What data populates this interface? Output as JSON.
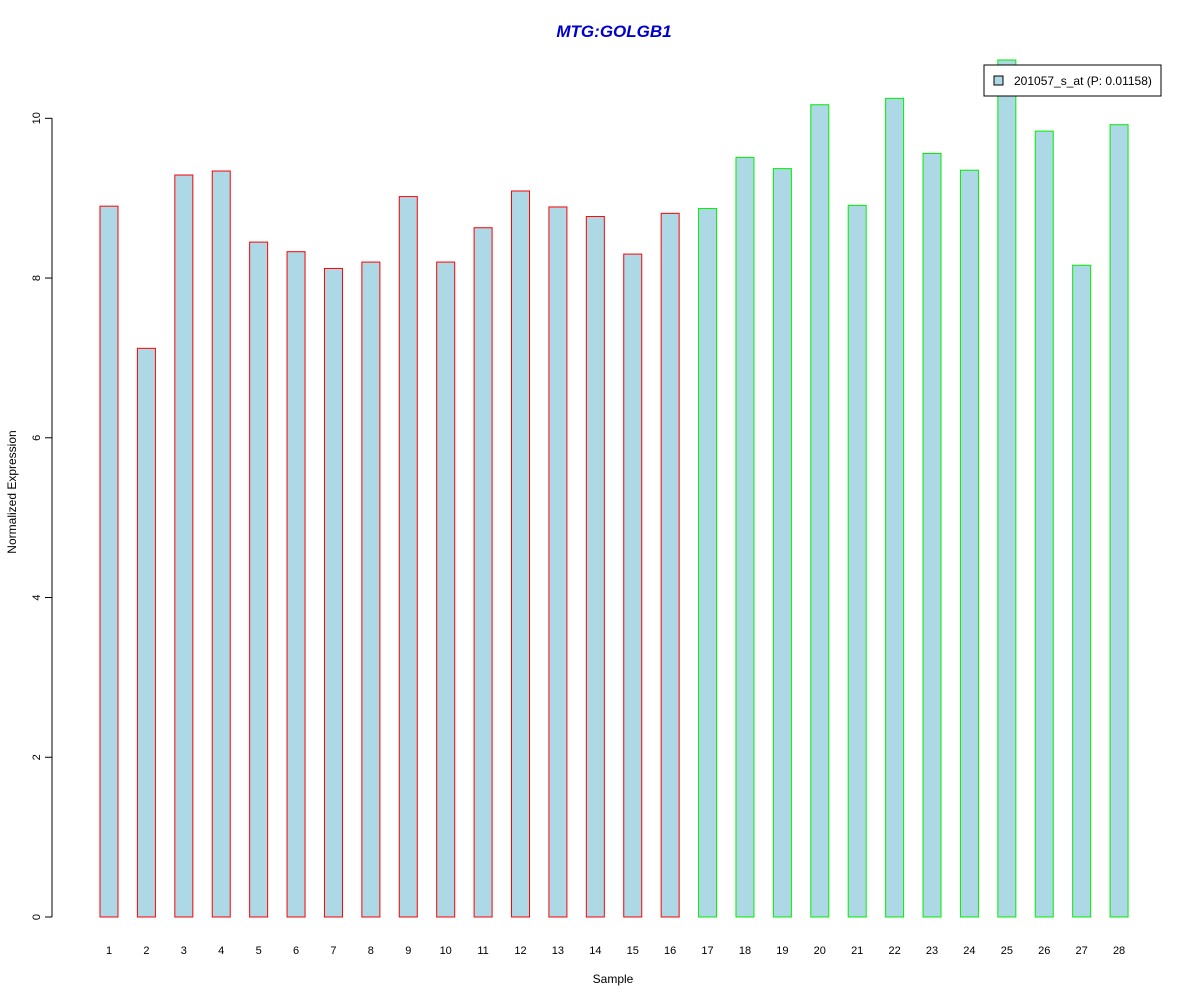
{
  "chart_data": {
    "type": "bar",
    "title": "MTG:GOLGB1",
    "xlabel": "Sample",
    "ylabel": "Normalized Expression",
    "categories": [
      "1",
      "2",
      "3",
      "4",
      "5",
      "6",
      "7",
      "8",
      "9",
      "10",
      "11",
      "12",
      "13",
      "14",
      "15",
      "16",
      "17",
      "18",
      "19",
      "20",
      "21",
      "22",
      "23",
      "24",
      "25",
      "26",
      "27",
      "28"
    ],
    "series": [
      {
        "name": "201057_s_at (P: 0.01158)",
        "values": [
          8.9,
          7.12,
          9.29,
          9.34,
          8.45,
          8.33,
          8.12,
          8.2,
          9.02,
          8.2,
          8.63,
          9.09,
          8.89,
          8.77,
          8.3,
          8.81,
          8.87,
          9.51,
          9.37,
          10.17,
          8.91,
          10.25,
          9.56,
          9.35,
          10.73,
          9.84,
          8.16,
          9.92
        ]
      }
    ],
    "groups": [
      {
        "samples": [
          1,
          2,
          3,
          4,
          5,
          6,
          7,
          8,
          9,
          10,
          11,
          12,
          13,
          14,
          15,
          16
        ],
        "border_color": "#ff0000"
      },
      {
        "samples": [
          17,
          18,
          19,
          20,
          21,
          22,
          23,
          24,
          25,
          26,
          27,
          28
        ],
        "border_color": "#00ee00"
      }
    ],
    "ylim": [
      0,
      10.73
    ],
    "y_ticks": [
      "0",
      "2",
      "4",
      "6",
      "8",
      "10"
    ],
    "grid": false,
    "legend_position": "top-right",
    "colors": {
      "title": "#0000cc",
      "bar_fill": "#add8e6",
      "axis": "#000000"
    }
  }
}
